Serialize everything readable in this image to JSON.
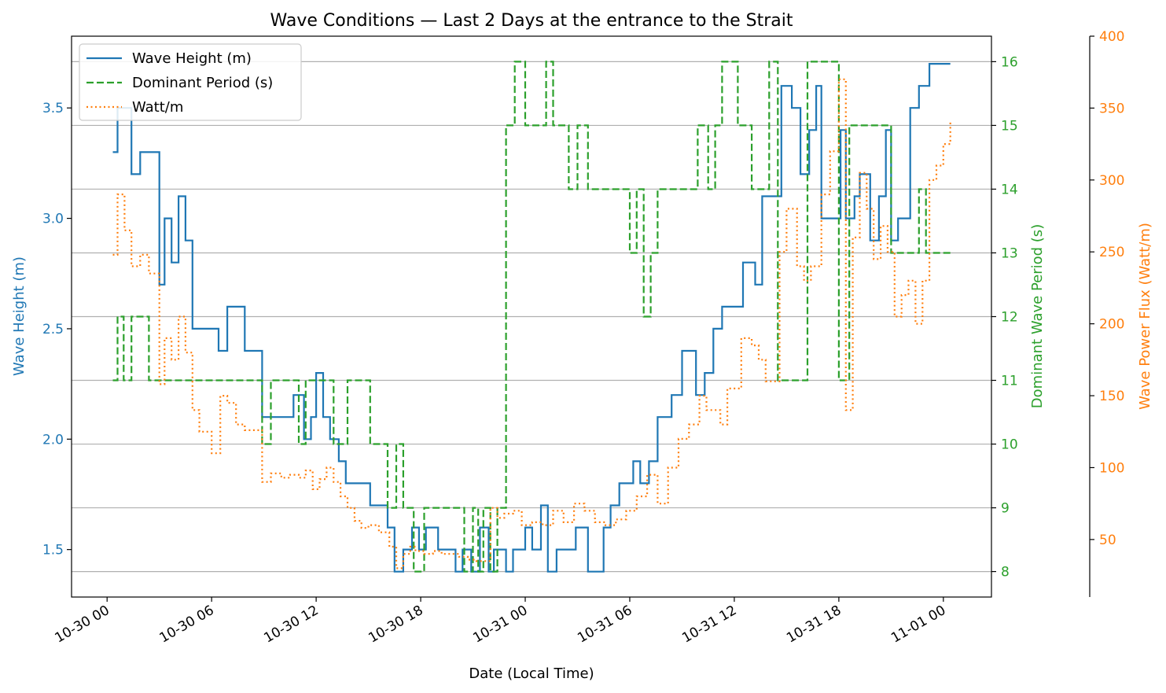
{
  "chart_data": {
    "type": "line",
    "title": "Wave Conditions — Last 2 Days at the entrance to the Strait",
    "xlabel": "Date (Local Time)",
    "x_tick_labels": [
      "10-30 00",
      "10-30 06",
      "10-30 12",
      "10-30 18",
      "10-31 00",
      "10-31 06",
      "10-31 12",
      "10-31 18",
      "11-01 00"
    ],
    "x_tick_hours": [
      0,
      6,
      12,
      18,
      24,
      30,
      36,
      42,
      48
    ],
    "xlim_hours": [
      -2.04,
      50.76
    ],
    "axes": {
      "left": {
        "label": "Wave Height (m)",
        "color": "#1f77b4",
        "ylim": [
          1.285,
          3.825
        ],
        "ticks": [
          1.5,
          2.0,
          2.5,
          3.0,
          3.5
        ],
        "tick_labels": [
          "1.5",
          "2.0",
          "2.5",
          "3.0",
          "3.5"
        ]
      },
      "right1": {
        "label": "Dominant Wave Period (s)",
        "color": "#2ca02c",
        "ylim": [
          7.6,
          16.4
        ],
        "ticks": [
          8,
          9,
          10,
          11,
          12,
          13,
          14,
          15,
          16
        ],
        "tick_labels": [
          "8",
          "9",
          "10",
          "11",
          "12",
          "13",
          "14",
          "15",
          "16"
        ]
      },
      "right2": {
        "label": "Wave Power Flux (Watt/m)",
        "color": "#ff7f0e",
        "ylim": [
          10,
          400
        ],
        "ticks": [
          50,
          100,
          150,
          200,
          250,
          300,
          350,
          400
        ],
        "tick_labels": [
          "50",
          "100",
          "150",
          "200",
          "250",
          "300",
          "350",
          "400"
        ]
      }
    },
    "grid": "horizontal (period axis)",
    "legend_position": "upper-left",
    "series": [
      {
        "name": "Wave Height (m)",
        "axis": "left",
        "style": "solid",
        "color": "#1f77b4",
        "step": true,
        "x_hours": [
          0.33,
          0.6,
          1.4,
          1.9,
          2.2,
          3.0,
          3.3,
          3.7,
          4.1,
          4.5,
          4.9,
          5.3,
          6.4,
          6.9,
          7.9,
          8.9,
          10.7,
          11.3,
          11.7,
          12.0,
          12.4,
          12.8,
          13.3,
          13.7,
          14.1,
          14.5,
          15.1,
          16.1,
          16.5,
          17.0,
          17.5,
          17.9,
          18.3,
          18.7,
          19.0,
          20.0,
          20.4,
          20.9,
          21.4,
          21.9,
          22.2,
          22.9,
          23.3,
          24.0,
          24.4,
          24.9,
          25.3,
          25.8,
          26.5,
          26.9,
          27.6,
          28.5,
          28.9,
          29.4,
          30.2,
          30.6,
          31.1,
          31.6,
          31.9,
          32.4,
          33.0,
          33.8,
          34.3,
          34.8,
          35.3,
          35.8,
          36.5,
          37.2,
          37.6,
          38.0,
          38.7,
          39.3,
          39.8,
          40.3,
          40.7,
          41.0,
          41.5,
          42.1,
          42.4,
          42.9,
          43.2,
          43.8,
          44.3,
          44.7,
          45.0,
          45.4,
          46.1,
          46.6,
          47.2,
          47.6,
          48.0,
          48.4
        ],
        "values": [
          3.3,
          3.5,
          3.2,
          3.3,
          3.3,
          2.7,
          3.0,
          2.8,
          3.1,
          2.9,
          2.5,
          2.5,
          2.4,
          2.6,
          2.4,
          2.1,
          2.2,
          2.0,
          2.1,
          2.3,
          2.1,
          2.0,
          1.9,
          1.8,
          1.8,
          1.8,
          1.7,
          1.6,
          1.4,
          1.5,
          1.6,
          1.5,
          1.6,
          1.6,
          1.5,
          1.4,
          1.5,
          1.4,
          1.6,
          1.4,
          1.5,
          1.4,
          1.5,
          1.6,
          1.5,
          1.7,
          1.4,
          1.5,
          1.5,
          1.6,
          1.4,
          1.6,
          1.7,
          1.8,
          1.9,
          1.8,
          1.9,
          2.1,
          2.1,
          2.2,
          2.4,
          2.2,
          2.3,
          2.5,
          2.6,
          2.6,
          2.8,
          2.7,
          3.1,
          3.1,
          3.6,
          3.5,
          3.2,
          3.4,
          3.6,
          3.0,
          3.0,
          3.4,
          3.0,
          3.1,
          3.2,
          2.9,
          3.1,
          3.4,
          2.9,
          3.0,
          3.5,
          3.6,
          3.7,
          3.7,
          3.7,
          3.7
        ]
      },
      {
        "name": "Dominant Period (s)",
        "axis": "right1",
        "style": "dashed",
        "color": "#2ca02c",
        "step": true,
        "x_hours": [
          0.33,
          0.6,
          0.95,
          1.4,
          2.4,
          7.9,
          8.9,
          9.4,
          10.4,
          11.0,
          11.4,
          13.0,
          13.8,
          15.1,
          16.1,
          16.6,
          17.0,
          17.6,
          18.2,
          20.0,
          20.5,
          21.0,
          21.3,
          21.6,
          22.0,
          22.4,
          22.9,
          23.4,
          24.0,
          24.9,
          25.2,
          25.6,
          26.5,
          27.0,
          27.6,
          28.2,
          30.0,
          30.4,
          30.8,
          31.2,
          31.6,
          32.0,
          33.9,
          34.5,
          34.9,
          35.3,
          36.2,
          37.0,
          37.5,
          38.0,
          38.5,
          39.0,
          40.2,
          40.7,
          42.0,
          42.6,
          43.0,
          43.6,
          45.0,
          46.2,
          46.6,
          47.0,
          48.5
        ],
        "values": [
          11,
          12,
          11,
          12,
          11,
          11,
          10,
          11,
          11,
          10,
          11,
          10,
          11,
          10,
          9,
          10,
          9,
          8,
          9,
          9,
          8,
          9,
          8,
          9,
          8,
          9,
          15,
          16,
          15,
          15,
          16,
          15,
          14,
          15,
          14,
          14,
          13,
          14,
          12,
          13,
          14,
          14,
          15,
          14,
          15,
          16,
          15,
          14,
          14,
          16,
          11,
          11,
          16,
          16,
          11,
          15,
          15,
          15,
          13,
          13,
          14,
          13,
          13
        ]
      },
      {
        "name": "Watt/m",
        "axis": "right2",
        "style": "dotted",
        "color": "#ff7f0e",
        "step": true,
        "x_hours": [
          0.33,
          0.6,
          1.0,
          1.4,
          1.9,
          2.4,
          3.0,
          3.3,
          3.7,
          4.1,
          4.5,
          4.9,
          5.3,
          6.0,
          6.5,
          6.9,
          7.4,
          7.9,
          8.9,
          9.4,
          10.0,
          10.5,
          11.0,
          11.4,
          11.8,
          12.2,
          12.6,
          13.0,
          13.4,
          13.8,
          14.2,
          14.6,
          15.0,
          15.6,
          16.2,
          16.6,
          17.0,
          17.4,
          17.7,
          18.2,
          18.7,
          19.2,
          19.7,
          20.2,
          20.7,
          21.2,
          21.6,
          22.0,
          22.4,
          22.8,
          23.3,
          23.8,
          24.4,
          25.0,
          25.6,
          26.2,
          26.8,
          27.4,
          28.0,
          28.6,
          29.2,
          29.8,
          30.4,
          31.0,
          31.6,
          32.2,
          32.8,
          33.4,
          34.0,
          34.4,
          35.2,
          35.6,
          36.4,
          37.0,
          37.4,
          37.8,
          38.6,
          39.0,
          39.6,
          40.0,
          40.4,
          41.0,
          41.5,
          42.0,
          42.4,
          42.8,
          43.2,
          43.6,
          44.0,
          44.4,
          44.8,
          45.2,
          45.6,
          46.0,
          46.4,
          46.8,
          47.2,
          47.6,
          48.0,
          48.4
        ],
        "values": [
          248,
          290,
          265,
          240,
          248,
          235,
          158,
          190,
          175,
          205,
          180,
          140,
          125,
          110,
          150,
          145,
          130,
          126,
          90,
          96,
          93,
          95,
          93,
          98,
          85,
          92,
          100,
          90,
          80,
          72,
          63,
          58,
          60,
          55,
          45,
          30,
          40,
          45,
          42,
          40,
          42,
          40,
          40,
          38,
          36,
          35,
          35,
          72,
          65,
          68,
          70,
          60,
          62,
          60,
          70,
          62,
          75,
          70,
          62,
          60,
          64,
          70,
          80,
          95,
          75,
          100,
          120,
          130,
          150,
          140,
          130,
          155,
          190,
          185,
          175,
          160,
          250,
          280,
          240,
          230,
          240,
          290,
          320,
          370,
          140,
          260,
          305,
          280,
          245,
          268,
          250,
          205,
          220,
          230,
          200,
          230,
          300,
          310,
          325,
          340
        ]
      }
    ]
  }
}
